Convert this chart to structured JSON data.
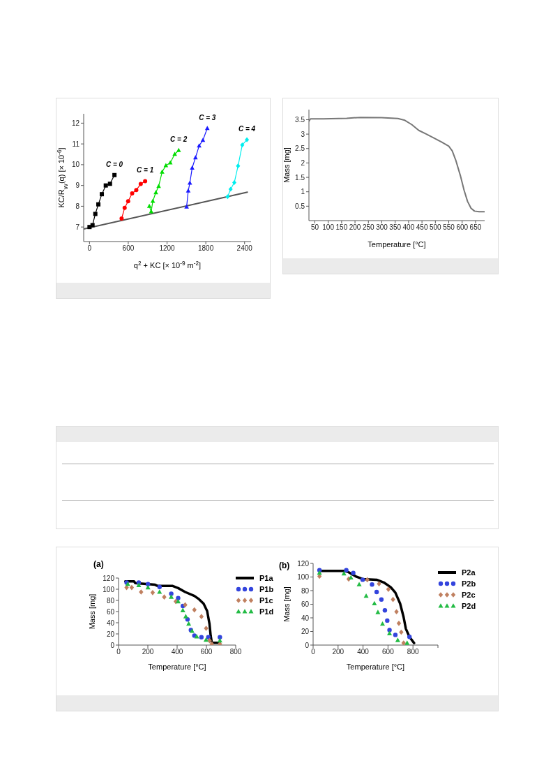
{
  "chart_data": [
    {
      "type": "line",
      "xlabel": "q$^{2}$ + KC [× 10$^{-9}$ m$^{-2}$]",
      "ylabel": "KC/R$_{vv}$(q) [× 10$^{-6}$]",
      "xlim": [
        -90,
        2500
      ],
      "ylim": [
        6.3,
        12.45
      ],
      "xticks": [
        0,
        600,
        1200,
        1800,
        2400
      ],
      "yticks": [
        7,
        8,
        9,
        10,
        11,
        12
      ],
      "series": [
        {
          "name": "C = 0",
          "color": "#000000",
          "marker": "square",
          "x": [
            0,
            47,
            90,
            137,
            191,
            252,
            317,
            386
          ],
          "values": [
            7.0,
            7.09,
            7.63,
            8.09,
            8.58,
            9.0,
            9.08,
            9.5
          ]
        },
        {
          "name": "C = 1",
          "color": "#ff0000",
          "marker": "circle",
          "x": [
            497,
            544,
            598,
            660,
            724,
            793,
            861
          ],
          "values": [
            7.41,
            7.92,
            8.24,
            8.62,
            8.78,
            9.07,
            9.21
          ]
        },
        {
          "name": "C = 2",
          "color": "#00dd00",
          "marker": "triangle",
          "x": [
            926,
            955,
            980,
            1027,
            1070,
            1124,
            1182,
            1250,
            1319,
            1380
          ],
          "values": [
            8.0,
            7.74,
            8.25,
            8.66,
            8.96,
            9.65,
            9.96,
            10.09,
            10.51,
            10.69
          ]
        },
        {
          "name": "C = 3",
          "color": "#1a1aff",
          "marker": "triangle",
          "x": [
            1503,
            1528,
            1553,
            1589,
            1640,
            1697,
            1755,
            1823
          ],
          "values": [
            7.97,
            8.74,
            9.12,
            9.84,
            10.34,
            10.91,
            11.18,
            11.75
          ]
        },
        {
          "name": "C = 4",
          "color": "#00eeee",
          "marker": "diamond",
          "x": [
            2137,
            2184,
            2241,
            2299,
            2364,
            2436
          ],
          "values": [
            8.46,
            8.82,
            9.14,
            9.94,
            10.95,
            11.2
          ]
        },
        {
          "color": "#555555",
          "marker": "none",
          "x": [
            -90,
            2443
          ],
          "values": [
            6.9,
            8.68
          ]
        }
      ]
    },
    {
      "type": "line",
      "xlabel": "Temperature [°C]",
      "ylabel": "Mass [mg]",
      "xlim": [
        28,
        684
      ],
      "ylim": [
        0,
        3.85
      ],
      "xticks": [
        50,
        100,
        150,
        200,
        250,
        300,
        350,
        400,
        450,
        500,
        550,
        600,
        650
      ],
      "yticks": [
        0.5,
        1.0,
        1.5,
        2.0,
        2.5,
        3.0,
        3.5
      ],
      "series": [
        {
          "color": "#777777",
          "marker": "none",
          "x": [
            28,
            34,
            82,
            169,
            221,
            299,
            360,
            386,
            412,
            438,
            464,
            498,
            524,
            550,
            563,
            576,
            594,
            607,
            620,
            633,
            646,
            663,
            684
          ],
          "values": [
            3.45,
            3.53,
            3.53,
            3.55,
            3.58,
            3.57,
            3.54,
            3.48,
            3.33,
            3.13,
            3.01,
            2.85,
            2.72,
            2.58,
            2.42,
            2.1,
            1.54,
            1.06,
            0.67,
            0.43,
            0.33,
            0.31,
            0.31
          ]
        }
      ]
    },
    {
      "type": "line",
      "title": "(a)",
      "xlabel": "Temperature [°C]",
      "ylabel": "Mass [mg]",
      "xlim": [
        0,
        800
      ],
      "ylim": [
        0,
        120
      ],
      "xticks": [
        0,
        200,
        400,
        600,
        800
      ],
      "yticks": [
        0,
        20,
        40,
        60,
        80,
        100,
        120
      ],
      "legend": "right",
      "series": [
        {
          "name": "P1a",
          "color": "#000000",
          "marker": "none",
          "x": [
            46,
            106,
            114,
            249,
            265,
            367,
            407,
            455,
            518,
            550,
            581,
            605,
            621,
            629,
            637,
            692
          ],
          "values": [
            114,
            114,
            111,
            108,
            106,
            106,
            102,
            95,
            88,
            82,
            74,
            61,
            38,
            17,
            4,
            4
          ]
        },
        {
          "name": "P1b",
          "type": "scatter",
          "color": "#3344dd",
          "marker": "circle",
          "x": [
            55,
            138,
            201,
            280,
            360,
            407,
            439,
            471,
            494,
            518,
            566,
            613,
            692
          ],
          "values": [
            112,
            112,
            109,
            104,
            92,
            84,
            70,
            46,
            27,
            17,
            14,
            14,
            14
          ]
        },
        {
          "name": "P1c",
          "type": "scatter",
          "color": "#c08060",
          "marker": "diamond",
          "x": [
            55,
            90,
            154,
            233,
            312,
            391,
            455,
            518,
            566,
            598,
            621,
            637,
            692
          ],
          "values": [
            103,
            103,
            95,
            94,
            86,
            78,
            72,
            63,
            51,
            30,
            8,
            2,
            2
          ]
        },
        {
          "name": "P1d",
          "type": "scatter",
          "color": "#22bb44",
          "marker": "triangle",
          "x": [
            63,
            138,
            201,
            280,
            360,
            407,
            439,
            459,
            479,
            502,
            534,
            597,
            692
          ],
          "values": [
            109,
            107,
            103,
            95,
            86,
            78,
            62,
            51,
            38,
            25,
            15,
            9,
            8
          ]
        }
      ]
    },
    {
      "type": "line",
      "title": "(b)",
      "xlabel": "Temperature [°C]",
      "ylabel": "Mass [mg]",
      "xlim": [
        0,
        1000
      ],
      "ylim": [
        0,
        120
      ],
      "xticks": [
        0,
        200,
        400,
        600,
        800,
        {
          "value": 1000,
          "label": null
        }
      ],
      "yticks": [
        0,
        20,
        40,
        60,
        80,
        100,
        120
      ],
      "legend": "right",
      "series": [
        {
          "name": "P2a",
          "color": "#000000",
          "marker": "none",
          "x": [
            51,
            247,
            285,
            341,
            397,
            509,
            566,
            622,
            659,
            697,
            725,
            743,
            772,
            809
          ],
          "values": [
            109,
            109,
            107,
            101,
            97,
            96,
            92,
            85,
            77,
            61,
            41,
            24,
            12,
            3
          ]
        },
        {
          "name": "P2b",
          "type": "scatter",
          "color": "#3344dd",
          "marker": "circle",
          "x": [
            51,
            266,
            322,
            397,
            472,
            509,
            547,
            575,
            594,
            612,
            659,
            772
          ],
          "values": [
            110,
            110,
            106,
            96,
            89,
            78,
            67,
            51,
            36,
            22,
            15,
            12
          ]
        },
        {
          "name": "P2c",
          "type": "scatter",
          "color": "#c08060",
          "marker": "diamond",
          "x": [
            51,
            285,
            434,
            528,
            603,
            640,
            668,
            687,
            706,
            725
          ],
          "values": [
            101,
            97,
            96,
            90,
            82,
            67,
            49,
            32,
            19,
            3
          ]
        },
        {
          "name": "P2d",
          "type": "scatter",
          "color": "#22bb44",
          "marker": "triangle",
          "x": [
            51,
            247,
            303,
            369,
            425,
            491,
            519,
            556,
            612,
            678,
            753
          ],
          "values": [
            106,
            105,
            99,
            89,
            72,
            61,
            48,
            31,
            17,
            7,
            3
          ]
        }
      ]
    }
  ]
}
